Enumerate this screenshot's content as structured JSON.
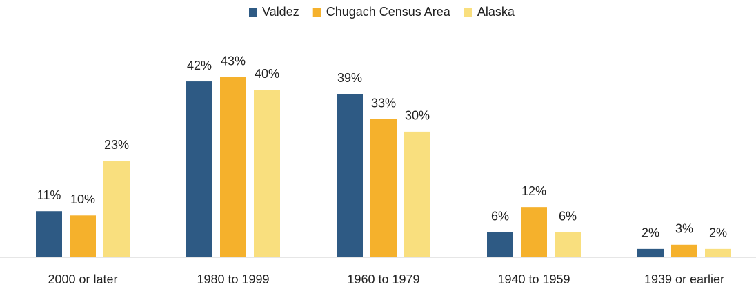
{
  "chart_data": {
    "type": "bar",
    "categories": [
      "2000 or later",
      "1980 to 1999",
      "1960 to 1979",
      "1940 to 1959",
      "1939 or earlier"
    ],
    "series": [
      {
        "name": "Valdez",
        "color": "#2e5a84",
        "values": [
          11,
          42,
          39,
          6,
          2
        ],
        "value_labels": [
          "11%",
          "42%",
          "39%",
          "6%",
          "2%"
        ]
      },
      {
        "name": "Chugach Census Area",
        "color": "#f5b12c",
        "values": [
          10,
          43,
          33,
          12,
          3
        ],
        "value_labels": [
          "10%",
          "43%",
          "33%",
          "12%",
          "3%"
        ]
      },
      {
        "name": "Alaska",
        "color": "#f9df7e",
        "values": [
          23,
          40,
          30,
          6,
          2
        ],
        "value_labels": [
          "23%",
          "40%",
          "30%",
          "6%",
          "2%"
        ]
      }
    ],
    "legend": "top"
  }
}
